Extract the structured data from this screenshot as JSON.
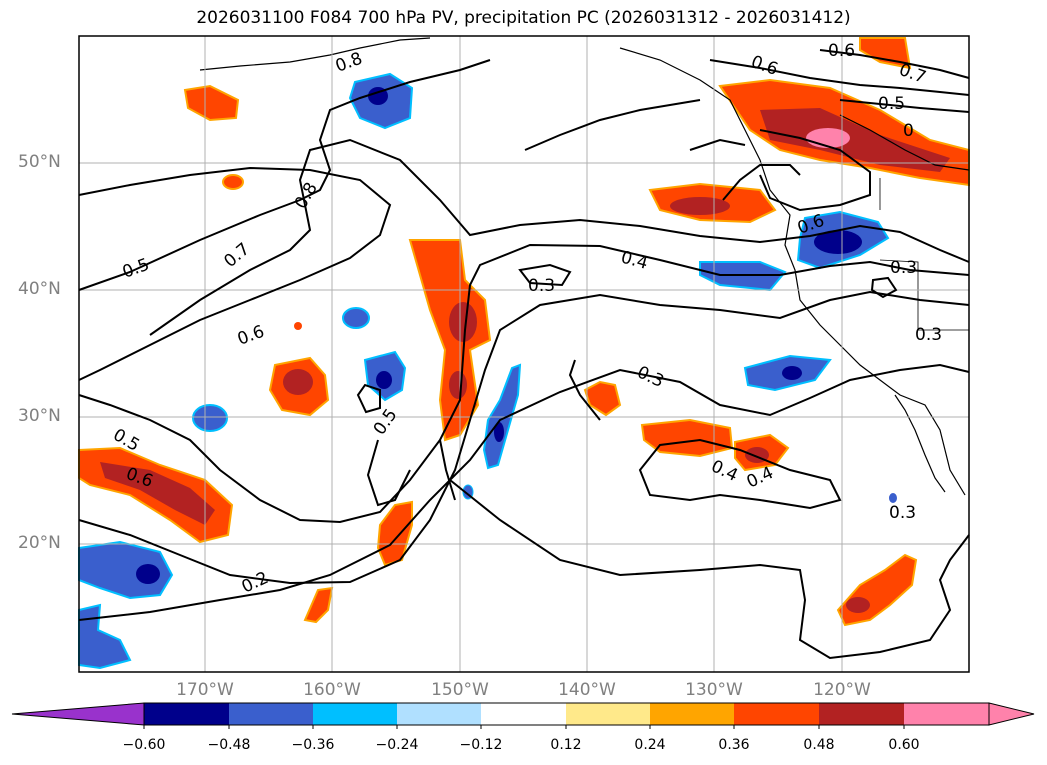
{
  "title": "2026031100 F084 700 hPa PV, precipitation PC (2026031312 - 2026031412)",
  "map": {
    "lat_labels": [
      "50°N",
      "40°N",
      "30°N",
      "20°N"
    ],
    "lon_labels": [
      "170°W",
      "160°W",
      "150°W",
      "140°W",
      "130°W",
      "120°W"
    ],
    "contour_labels": [
      "0.8",
      "0.5",
      "0.7",
      "0.6",
      "0.5",
      "0.5",
      "0.6",
      "0.2",
      "0.4",
      "0.3",
      "0.3",
      "0.6",
      "0.7",
      "0.5",
      "0",
      "0.6",
      "0.3",
      "0.3",
      "0.4",
      "0.4",
      "0.3",
      "0.8",
      "0.6"
    ]
  },
  "colorbar": {
    "ticks": [
      "−0.60",
      "−0.48",
      "−0.36",
      "−0.24",
      "−0.12",
      "0.12",
      "0.24",
      "0.36",
      "0.48",
      "0.60"
    ],
    "colors": {
      "under": "#9932cc",
      "bins": [
        "#00008b",
        "#3a5fcd",
        "#00bfff",
        "#b0e0ff",
        "#ffffff",
        "#ffe98a",
        "#ffa500",
        "#ff4500",
        "#b22222",
        "#ff82ab"
      ],
      "over": "#ff82ab"
    }
  },
  "colors": {
    "positive_strong": "#b22222",
    "positive": "#ff4500",
    "positive_edge": "#ffa500",
    "positive_light": "#ffe98a",
    "negative": "#3a5fcd",
    "negative_strong": "#00008b",
    "negative_edge": "#00bfff"
  }
}
